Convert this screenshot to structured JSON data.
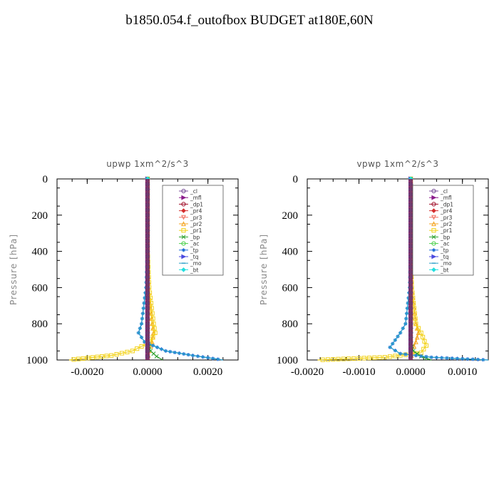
{
  "page_title": "b1850.054.f_outofbox  BUDGET at180E,60N",
  "legend_entries": [
    {
      "label": "_cl",
      "color": "#7a4f9a",
      "marker": "circle"
    },
    {
      "label": "_mfl",
      "color": "#8b1a8b",
      "marker": "tri-right"
    },
    {
      "label": "_dp1",
      "color": "#a0102a",
      "marker": "circle"
    },
    {
      "label": "_pr4",
      "color": "#d42c2c",
      "marker": "diamond"
    },
    {
      "label": "_pr3",
      "color": "#f07060",
      "marker": "tri-down"
    },
    {
      "label": "_pr2",
      "color": "#f5a623",
      "marker": "tri-up"
    },
    {
      "label": "_pr1",
      "color": "#f2d21b",
      "marker": "square"
    },
    {
      "label": "_bp",
      "color": "#2aa02a",
      "marker": "x"
    },
    {
      "label": "_ac",
      "color": "#4fd14f",
      "marker": "circle"
    },
    {
      "label": "_tp",
      "color": "#1f6fd8",
      "marker": "star"
    },
    {
      "label": "_tq",
      "color": "#4a4adf",
      "marker": "tri-right"
    },
    {
      "label": "_mo",
      "color": "#2a9fc8",
      "marker": "dash"
    },
    {
      "label": "_bt",
      "color": "#22dede",
      "marker": "diamond"
    }
  ],
  "chart_data": [
    {
      "type": "line",
      "title": "upwp   1xm^2/s^3",
      "ylabel": "Pressure [hPa]",
      "xlabel": "",
      "xlim": [
        -0.003,
        0.003
      ],
      "ylim": [
        1000,
        0
      ],
      "y_reversed": true,
      "xticks": [
        -0.002,
        0.0,
        0.002
      ],
      "xtick_labels": [
        "-0.0020",
        "0.0000",
        "0.0020"
      ],
      "yticks": [
        0,
        200,
        400,
        600,
        800,
        1000
      ],
      "ytick_labels": [
        "0",
        "200",
        "400",
        "600",
        "800",
        "1000"
      ],
      "legend_position": "top-right",
      "series": [
        {
          "name": "_cl",
          "x": [
            0,
            0,
            0,
            0,
            0,
            0,
            0,
            0,
            0
          ],
          "y": [
            0,
            200,
            400,
            600,
            800,
            900,
            950,
            980,
            1000
          ]
        },
        {
          "name": "_mfl",
          "x": [
            0,
            0,
            0,
            0,
            0,
            0,
            0,
            0,
            0
          ],
          "y": [
            0,
            200,
            400,
            600,
            800,
            900,
            950,
            980,
            1000
          ]
        },
        {
          "name": "_dp1",
          "x": [
            0,
            0,
            0,
            0,
            0,
            0,
            0,
            0,
            0
          ],
          "y": [
            0,
            200,
            400,
            600,
            800,
            900,
            950,
            980,
            1000
          ]
        },
        {
          "name": "_pr4",
          "x": [
            0,
            0,
            0,
            0,
            0,
            0,
            0,
            0,
            0
          ],
          "y": [
            0,
            200,
            400,
            600,
            800,
            900,
            950,
            980,
            1000
          ]
        },
        {
          "name": "_pr3",
          "x": [
            0,
            0,
            0,
            0,
            0,
            0,
            0,
            0,
            0
          ],
          "y": [
            0,
            200,
            400,
            600,
            800,
            900,
            950,
            980,
            1000
          ]
        },
        {
          "name": "_pr2",
          "x": [
            0,
            0,
            0,
            3e-05,
            0.00015,
            0.0002,
            0.00015,
            5e-05,
            0
          ],
          "y": [
            0,
            200,
            400,
            600,
            800,
            850,
            900,
            950,
            1000
          ]
        },
        {
          "name": "_pr1",
          "x": [
            0,
            0,
            0,
            5e-05,
            0.0002,
            0.00025,
            0.0001,
            -0.0005,
            -0.0012,
            -0.0026
          ],
          "y": [
            0,
            200,
            400,
            600,
            800,
            850,
            900,
            950,
            975,
            1000
          ]
        },
        {
          "name": "_bp",
          "x": [
            0,
            0,
            0,
            0,
            0,
            0,
            0.0001,
            0.0003,
            0.0005
          ],
          "y": [
            0,
            200,
            400,
            600,
            800,
            900,
            950,
            980,
            1000
          ]
        },
        {
          "name": "_ac",
          "x": [
            0,
            0,
            0,
            0,
            0,
            0,
            0,
            0,
            0
          ],
          "y": [
            0,
            200,
            400,
            600,
            800,
            900,
            950,
            980,
            1000
          ]
        },
        {
          "name": "_tp",
          "x": [
            0,
            0,
            0,
            -5e-05,
            -0.0002,
            -0.0003,
            -0.0001,
            0.0006,
            0.0015,
            0.0025
          ],
          "y": [
            0,
            200,
            400,
            600,
            800,
            850,
            900,
            950,
            975,
            1000
          ]
        },
        {
          "name": "_tq",
          "x": [
            0,
            0,
            0,
            0,
            0,
            0,
            0,
            0,
            0
          ],
          "y": [
            0,
            200,
            400,
            600,
            800,
            900,
            950,
            980,
            1000
          ]
        },
        {
          "name": "_mo",
          "x": [
            0,
            0,
            0,
            -5e-05,
            -0.0002,
            -0.0003,
            -0.0001,
            0.0006,
            0.0015,
            0.0025
          ],
          "y": [
            0,
            200,
            400,
            600,
            800,
            850,
            900,
            950,
            975,
            1000
          ]
        },
        {
          "name": "_bt",
          "x": [
            0,
            0,
            0,
            0,
            0,
            0,
            0,
            0,
            0
          ],
          "y": [
            0,
            200,
            400,
            600,
            800,
            900,
            950,
            980,
            1000
          ]
        }
      ]
    },
    {
      "type": "line",
      "title": "vpwp   1xm^2/s^3",
      "ylabel": "Pressure [hPa]",
      "xlabel": "",
      "xlim": [
        -0.002,
        0.0015
      ],
      "ylim": [
        1000,
        0
      ],
      "y_reversed": true,
      "xticks": [
        -0.002,
        -0.001,
        0.0,
        0.001
      ],
      "xtick_labels": [
        "-0.0020",
        "-0.0010",
        "0.0000",
        "0.0010"
      ],
      "yticks": [
        0,
        200,
        400,
        600,
        800,
        1000
      ],
      "ytick_labels": [
        "0",
        "200",
        "400",
        "600",
        "800",
        "1000"
      ],
      "legend_position": "top-right",
      "series": [
        {
          "name": "_cl",
          "x": [
            0,
            0,
            0,
            0,
            0,
            0,
            0,
            0,
            0
          ],
          "y": [
            0,
            200,
            400,
            600,
            800,
            900,
            950,
            980,
            1000
          ]
        },
        {
          "name": "_mfl",
          "x": [
            0,
            0,
            0,
            0,
            0,
            0,
            0,
            0,
            0
          ],
          "y": [
            0,
            200,
            400,
            600,
            800,
            900,
            950,
            980,
            1000
          ]
        },
        {
          "name": "_dp1",
          "x": [
            0,
            0,
            0,
            0,
            0,
            0,
            0,
            0,
            0
          ],
          "y": [
            0,
            200,
            400,
            600,
            800,
            900,
            950,
            980,
            1000
          ]
        },
        {
          "name": "_pr4",
          "x": [
            0,
            0,
            0,
            0,
            0,
            0,
            0,
            0,
            0
          ],
          "y": [
            0,
            200,
            400,
            600,
            800,
            900,
            950,
            980,
            1000
          ]
        },
        {
          "name": "_pr3",
          "x": [
            0,
            0,
            0,
            0,
            0,
            0,
            0,
            0,
            0
          ],
          "y": [
            0,
            200,
            400,
            600,
            800,
            900,
            950,
            980,
            1000
          ]
        },
        {
          "name": "_pr2",
          "x": [
            0,
            0,
            0,
            2e-05,
            0.0001,
            0.00015,
            0.0001,
            3e-05,
            0
          ],
          "y": [
            0,
            200,
            400,
            600,
            800,
            850,
            900,
            950,
            1000
          ]
        },
        {
          "name": "_pr1",
          "x": [
            0,
            0,
            0,
            2e-05,
            0.0001,
            0.0002,
            0.0003,
            0.0002,
            -0.0005,
            -0.0018
          ],
          "y": [
            0,
            200,
            400,
            600,
            800,
            850,
            920,
            960,
            985,
            1000
          ]
        },
        {
          "name": "_bp",
          "x": [
            0,
            0,
            0,
            0,
            0,
            0,
            5e-05,
            0.0002,
            0.0004
          ],
          "y": [
            0,
            200,
            400,
            600,
            800,
            900,
            950,
            980,
            1000
          ]
        },
        {
          "name": "_ac",
          "x": [
            0,
            0,
            0,
            0,
            0,
            0,
            0,
            0,
            0
          ],
          "y": [
            0,
            200,
            400,
            600,
            800,
            900,
            950,
            980,
            1000
          ]
        },
        {
          "name": "_tp",
          "x": [
            0,
            0,
            0,
            -2e-05,
            -0.0001,
            -0.0002,
            -0.0004,
            -0.0002,
            0.0004,
            0.0015
          ],
          "y": [
            0,
            200,
            400,
            600,
            800,
            850,
            930,
            965,
            985,
            1000
          ]
        },
        {
          "name": "_tq",
          "x": [
            0,
            0,
            0,
            0,
            0,
            0,
            0,
            0,
            0
          ],
          "y": [
            0,
            200,
            400,
            600,
            800,
            900,
            950,
            980,
            1000
          ]
        },
        {
          "name": "_mo",
          "x": [
            0,
            0,
            0,
            -2e-05,
            -0.0001,
            -0.0002,
            -0.0004,
            -0.0002,
            0.0004,
            0.0015
          ],
          "y": [
            0,
            200,
            400,
            600,
            800,
            850,
            930,
            965,
            985,
            1000
          ]
        },
        {
          "name": "_bt",
          "x": [
            0,
            0,
            0,
            0,
            0,
            0,
            0,
            0,
            0
          ],
          "y": [
            0,
            200,
            400,
            600,
            800,
            900,
            950,
            980,
            1000
          ]
        }
      ]
    }
  ]
}
